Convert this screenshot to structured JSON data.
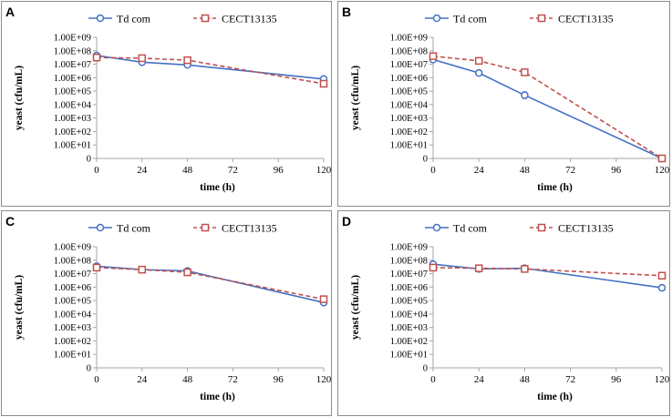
{
  "chart_data": [
    {
      "type": "line",
      "panel_label": "A",
      "x": [
        0,
        24,
        48,
        120
      ],
      "xticks": [
        "0",
        "24",
        "48",
        "72",
        "96",
        "120"
      ],
      "xtick_values": [
        0,
        24,
        48,
        72,
        96,
        120
      ],
      "yticks": [
        "0",
        "1.00E+01",
        "1.00E+02",
        "1.00E+03",
        "1.00E+04",
        "1.00E+05",
        "1.00E+06",
        "1.00E+07",
        "1.00E+08",
        "1.00E+09"
      ],
      "ylim_log10": [
        0,
        9
      ],
      "xlim": [
        0,
        120
      ],
      "xlabel": "time (h)",
      "ylabel": "yeast (cfu/mL)",
      "series": [
        {
          "name": "Td com",
          "values_log10": [
            7.65,
            7.15,
            6.95,
            5.9
          ],
          "errors_log10": [
            0.05,
            0.05,
            0.05,
            0.05
          ]
        },
        {
          "name": "CECT13135",
          "values_log10": [
            7.5,
            7.45,
            7.3,
            5.55
          ],
          "errors_log10": [
            0.05,
            0.05,
            0.05,
            0.05
          ]
        }
      ]
    },
    {
      "type": "line",
      "panel_label": "B",
      "x": [
        0,
        24,
        48,
        120
      ],
      "xticks": [
        "0",
        "24",
        "48",
        "72",
        "96",
        "120"
      ],
      "xtick_values": [
        0,
        24,
        48,
        72,
        96,
        120
      ],
      "yticks": [
        "0",
        "1.00E+01",
        "1.00E+02",
        "1.00E+03",
        "1.00E+04",
        "1.00E+05",
        "1.00E+06",
        "1.00E+07",
        "1.00E+08",
        "1.00E+09"
      ],
      "ylim_log10": [
        0,
        9
      ],
      "xlim": [
        0,
        120
      ],
      "xlabel": "time (h)",
      "ylabel": "yeast (cfu/mL)",
      "series": [
        {
          "name": "Td com",
          "values_log10": [
            7.35,
            6.35,
            4.7,
            0
          ],
          "errors_log10": [
            0.05,
            0.1,
            0.25,
            0
          ]
        },
        {
          "name": "CECT13135",
          "values_log10": [
            7.6,
            7.25,
            6.4,
            0
          ],
          "errors_log10": [
            0.05,
            0.05,
            0.1,
            0
          ]
        }
      ]
    },
    {
      "type": "line",
      "panel_label": "C",
      "x": [
        0,
        24,
        48,
        120
      ],
      "xticks": [
        "0",
        "24",
        "48",
        "72",
        "96",
        "120"
      ],
      "xtick_values": [
        0,
        24,
        48,
        72,
        96,
        120
      ],
      "yticks": [
        "0",
        "1.00E+01",
        "1.00E+02",
        "1.00E+03",
        "1.00E+04",
        "1.00E+05",
        "1.00E+06",
        "1.00E+07",
        "1.00E+08",
        "1.00E+09"
      ],
      "ylim_log10": [
        0,
        9
      ],
      "xlim": [
        0,
        120
      ],
      "xlabel": "time (h)",
      "ylabel": "yeast (cfu/mL)",
      "series": [
        {
          "name": "Td com",
          "values_log10": [
            7.55,
            7.3,
            7.2,
            4.85
          ],
          "errors_log10": [
            0.05,
            0.05,
            0.05,
            0.05
          ]
        },
        {
          "name": "CECT13135",
          "values_log10": [
            7.45,
            7.3,
            7.1,
            5.1
          ],
          "errors_log10": [
            0.05,
            0.05,
            0.05,
            0.05
          ]
        }
      ]
    },
    {
      "type": "line",
      "panel_label": "D",
      "x": [
        0,
        24,
        48,
        120
      ],
      "xticks": [
        "0",
        "24",
        "48",
        "72",
        "96",
        "120"
      ],
      "xtick_values": [
        0,
        24,
        48,
        72,
        96,
        120
      ],
      "yticks": [
        "0",
        "1.00E+01",
        "1.00E+02",
        "1.00E+03",
        "1.00E+04",
        "1.00E+05",
        "1.00E+06",
        "1.00E+07",
        "1.00E+08",
        "1.00E+09"
      ],
      "ylim_log10": [
        0,
        9
      ],
      "xlim": [
        0,
        120
      ],
      "xlabel": "time (h)",
      "ylabel": "yeast (cfu/mL)",
      "series": [
        {
          "name": "Td com",
          "values_log10": [
            7.7,
            7.35,
            7.4,
            5.95
          ],
          "errors_log10": [
            0.05,
            0.05,
            0.05,
            0.05
          ]
        },
        {
          "name": "CECT13135",
          "values_log10": [
            7.45,
            7.4,
            7.35,
            6.85
          ],
          "errors_log10": [
            0.05,
            0.05,
            0.05,
            0.05
          ]
        }
      ]
    }
  ],
  "style": {
    "series_colors": [
      "#4472c4",
      "#c0504d"
    ],
    "axis_color": "#a6a6a6"
  }
}
